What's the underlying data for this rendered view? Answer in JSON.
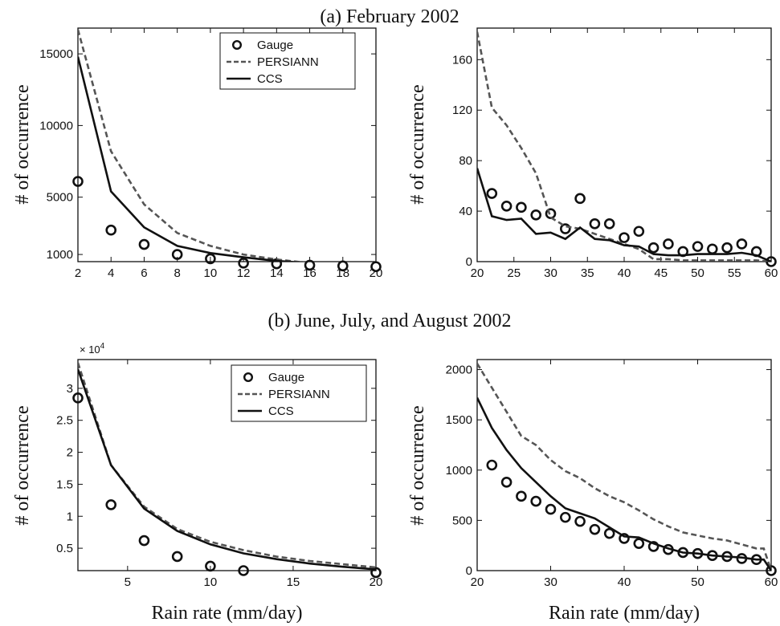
{
  "titles": {
    "a": "(a) February 2002",
    "b": "(b) June, July, and August 2002"
  },
  "legend": {
    "gauge": "Gauge",
    "persiann": "PERSIANN",
    "ccs": "CCS"
  },
  "multiplier_label": "× 10",
  "multiplier_exp": "4",
  "chart_data": [
    {
      "id": "a-left",
      "type": "line",
      "ylabel": "# of occurrence",
      "xlabel": "",
      "xlim": [
        2,
        20
      ],
      "ylim": [
        500,
        16800
      ],
      "xticks": [
        2,
        4,
        6,
        8,
        10,
        12,
        14,
        16,
        18,
        20
      ],
      "yticks": [
        1000,
        5000,
        10000,
        15000
      ],
      "legend": "top-right",
      "series": [
        {
          "name": "Gauge",
          "style": "circle",
          "x": [
            2,
            4,
            6,
            8,
            10,
            12,
            14,
            16,
            18,
            20
          ],
          "y": [
            6100,
            2700,
            1700,
            1000,
            700,
            400,
            350,
            250,
            200,
            150
          ]
        },
        {
          "name": "PERSIANN",
          "style": "dashed",
          "x": [
            2,
            4,
            6,
            8,
            10,
            12,
            14,
            16,
            18,
            20
          ],
          "y": [
            16700,
            8200,
            4500,
            2500,
            1600,
            1000,
            650,
            400,
            300,
            200
          ]
        },
        {
          "name": "CCS",
          "style": "solid",
          "x": [
            2,
            4,
            6,
            8,
            10,
            12,
            14,
            16,
            18,
            20
          ],
          "y": [
            14800,
            5400,
            2900,
            1600,
            1100,
            800,
            550,
            400,
            300,
            200
          ]
        }
      ]
    },
    {
      "id": "a-right",
      "type": "line",
      "ylabel": "# of occurrence",
      "xlabel": "",
      "xlim": [
        20,
        60
      ],
      "ylim": [
        0,
        185
      ],
      "xticks": [
        20,
        25,
        30,
        35,
        40,
        45,
        50,
        55,
        60
      ],
      "yticks": [
        0,
        40,
        80,
        120,
        160
      ],
      "legend": "none",
      "series": [
        {
          "name": "Gauge",
          "style": "circle",
          "x": [
            22,
            24,
            26,
            28,
            30,
            32,
            34,
            36,
            38,
            40,
            42,
            44,
            46,
            48,
            50,
            52,
            54,
            56,
            58,
            60
          ],
          "y": [
            54,
            44,
            43,
            37,
            38,
            26,
            50,
            30,
            30,
            19,
            24,
            11,
            14,
            8,
            12,
            10,
            11,
            14,
            8,
            0
          ]
        },
        {
          "name": "PERSIANN",
          "style": "dashed",
          "x": [
            20,
            22,
            24,
            26,
            28,
            30,
            32,
            34,
            36,
            38,
            40,
            42,
            44,
            46,
            48,
            50,
            52,
            54,
            56,
            58,
            60
          ],
          "y": [
            182,
            122,
            108,
            90,
            70,
            35,
            28,
            26,
            22,
            18,
            14,
            10,
            2,
            2,
            1,
            1,
            1,
            1,
            1,
            1,
            0
          ]
        },
        {
          "name": "CCS",
          "style": "solid",
          "x": [
            20,
            22,
            24,
            26,
            28,
            30,
            32,
            34,
            36,
            38,
            40,
            42,
            44,
            46,
            48,
            50,
            52,
            54,
            56,
            58,
            60
          ],
          "y": [
            74,
            36,
            33,
            34,
            22,
            23,
            18,
            27,
            18,
            17,
            13,
            12,
            6,
            5,
            5,
            6,
            6,
            6,
            7,
            5,
            0
          ]
        }
      ]
    },
    {
      "id": "b-left",
      "type": "line",
      "ylabel": "# of occurrence",
      "xlabel": "Rain rate (mm/day)",
      "xlim": [
        2,
        20
      ],
      "ylim": [
        0.15,
        3.45
      ],
      "xticks": [
        5,
        10,
        15,
        20
      ],
      "yticks": [
        0.5,
        1,
        1.5,
        2,
        2.5,
        3
      ],
      "legend": "top-right",
      "series": [
        {
          "name": "Gauge",
          "style": "circle",
          "x": [
            2,
            4,
            6,
            8,
            10,
            12,
            20
          ],
          "y": [
            2.85,
            1.18,
            0.62,
            0.37,
            0.22,
            0.15,
            0.12
          ]
        },
        {
          "name": "PERSIANN",
          "style": "dashed",
          "x": [
            2,
            4,
            6,
            8,
            10,
            12,
            14,
            16,
            18,
            20
          ],
          "y": [
            3.4,
            1.8,
            1.15,
            0.8,
            0.6,
            0.47,
            0.37,
            0.3,
            0.25,
            0.2
          ]
        },
        {
          "name": "CCS",
          "style": "solid",
          "x": [
            2,
            4,
            6,
            8,
            10,
            12,
            14,
            16,
            18,
            20
          ],
          "y": [
            3.3,
            1.8,
            1.12,
            0.77,
            0.56,
            0.42,
            0.33,
            0.26,
            0.21,
            0.17
          ]
        }
      ]
    },
    {
      "id": "b-right",
      "type": "line",
      "ylabel": "# of occurrence",
      "xlabel": "Rain rate (mm/day)",
      "xlim": [
        20,
        60
      ],
      "ylim": [
        0,
        2100
      ],
      "xticks": [
        20,
        30,
        40,
        50,
        60
      ],
      "yticks": [
        0,
        500,
        1000,
        1500,
        2000
      ],
      "legend": "none",
      "series": [
        {
          "name": "Gauge",
          "style": "circle",
          "x": [
            22,
            24,
            26,
            28,
            30,
            32,
            34,
            36,
            38,
            40,
            42,
            44,
            46,
            48,
            50,
            52,
            54,
            56,
            58,
            60
          ],
          "y": [
            1050,
            880,
            740,
            690,
            610,
            530,
            490,
            410,
            370,
            320,
            270,
            240,
            210,
            180,
            170,
            150,
            140,
            120,
            110,
            0
          ]
        },
        {
          "name": "PERSIANN",
          "style": "dashed",
          "x": [
            20,
            22,
            24,
            26,
            28,
            30,
            32,
            34,
            36,
            38,
            40,
            42,
            44,
            46,
            48,
            50,
            52,
            54,
            56,
            58,
            59,
            60
          ],
          "y": [
            2060,
            1820,
            1580,
            1340,
            1250,
            1100,
            990,
            920,
            820,
            740,
            680,
            600,
            510,
            440,
            380,
            350,
            320,
            300,
            260,
            220,
            220,
            0
          ]
        },
        {
          "name": "CCS",
          "style": "solid",
          "x": [
            20,
            22,
            24,
            26,
            28,
            30,
            32,
            34,
            36,
            38,
            40,
            42,
            44,
            46,
            48,
            50,
            52,
            54,
            56,
            58,
            59,
            60
          ],
          "y": [
            1720,
            1420,
            1200,
            1020,
            880,
            740,
            620,
            570,
            520,
            430,
            340,
            330,
            270,
            220,
            180,
            170,
            150,
            140,
            130,
            110,
            110,
            0
          ]
        }
      ]
    }
  ]
}
